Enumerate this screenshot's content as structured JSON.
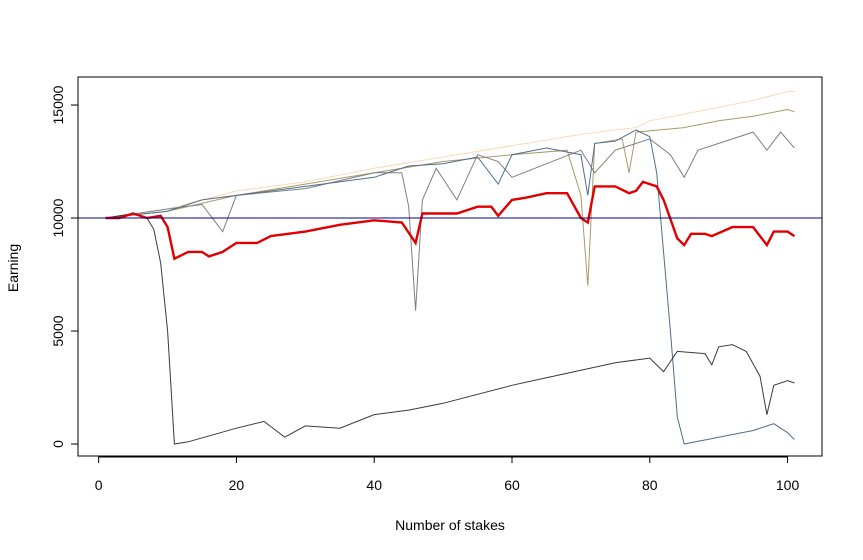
{
  "chart_data": {
    "type": "line",
    "xlabel": "Number of stakes",
    "ylabel": "Earning",
    "xlim": [
      -3,
      105
    ],
    "ylim": [
      -530,
      16240
    ],
    "xticks": [
      0,
      20,
      40,
      60,
      80,
      100
    ],
    "yticks": [
      0,
      5000,
      10000,
      15000
    ],
    "hline": 10000,
    "hline_color": "#00008b",
    "series": [
      {
        "color": "#fcd9b8",
        "width": 1,
        "x": [
          1,
          10,
          20,
          30,
          40,
          50,
          60,
          70,
          75,
          78,
          80,
          85,
          90,
          95,
          100,
          101
        ],
        "values": [
          10000,
          10400,
          11200,
          11600,
          12200,
          12700,
          13200,
          13700,
          13900,
          14000,
          14300,
          14600,
          14900,
          15200,
          15600,
          15600
        ]
      },
      {
        "color": "#a89a6a",
        "width": 1,
        "x": [
          1,
          10,
          20,
          30,
          40,
          50,
          60,
          68,
          70,
          71,
          72,
          76,
          77,
          78,
          85,
          90,
          95,
          100,
          101
        ],
        "values": [
          10000,
          10300,
          11000,
          11500,
          12000,
          12500,
          12800,
          13000,
          11000,
          7000,
          13300,
          13500,
          12000,
          13800,
          14000,
          14300,
          14500,
          14800,
          14700
        ]
      },
      {
        "color": "#7f7f7f",
        "width": 1,
        "x": [
          1,
          10,
          15,
          18,
          20,
          30,
          40,
          44,
          45,
          46,
          47,
          49,
          52,
          55,
          58,
          60,
          70,
          72,
          75,
          80,
          83,
          85,
          87,
          95,
          97,
          99,
          101
        ],
        "values": [
          10000,
          10400,
          10600,
          9400,
          11000,
          11300,
          12000,
          12000,
          10500,
          5900,
          10800,
          12200,
          10800,
          12800,
          12500,
          11800,
          13000,
          12000,
          13000,
          13500,
          12800,
          11800,
          13000,
          13800,
          13000,
          13800,
          13100
        ]
      },
      {
        "color": "#4f6d8f",
        "width": 1,
        "x": [
          1,
          10,
          15,
          20,
          30,
          40,
          45,
          50,
          55,
          58,
          60,
          65,
          70,
          71,
          72,
          75,
          78,
          80,
          81,
          83,
          84,
          85,
          90,
          95,
          98,
          100,
          101
        ],
        "values": [
          10000,
          10300,
          10800,
          11000,
          11400,
          11800,
          12300,
          12400,
          12700,
          11500,
          12800,
          13100,
          12800,
          11000,
          13300,
          13400,
          13900,
          13600,
          12000,
          5000,
          1200,
          0,
          300,
          600,
          900,
          500,
          200
        ]
      },
      {
        "color": "#3a3a3a",
        "width": 1,
        "x": [
          1,
          5,
          7,
          8,
          9,
          10,
          11,
          13,
          20,
          24,
          27,
          30,
          35,
          40,
          45,
          50,
          60,
          66,
          75,
          80,
          82,
          84,
          88,
          89,
          90,
          92,
          94,
          96,
          97,
          98,
          100,
          101
        ],
        "values": [
          10000,
          10200,
          10000,
          9500,
          8000,
          5000,
          0,
          100,
          700,
          1000,
          300,
          800,
          700,
          1300,
          1500,
          1800,
          2600,
          3000,
          3600,
          3800,
          3200,
          4100,
          4000,
          3500,
          4300,
          4400,
          4100,
          3000,
          1300,
          2600,
          2800,
          2700
        ]
      },
      {
        "color": "#e00000",
        "width": 2.4,
        "x": [
          1,
          3,
          5,
          7,
          9,
          10,
          11,
          13,
          15,
          16,
          18,
          20,
          23,
          25,
          30,
          35,
          40,
          44,
          46,
          47,
          50,
          52,
          55,
          57,
          58,
          60,
          62,
          65,
          68,
          70,
          71,
          72,
          75,
          77,
          78,
          79,
          81,
          82,
          84,
          85,
          86,
          88,
          89,
          92,
          95,
          97,
          98,
          100,
          101
        ],
        "values": [
          10000,
          10000,
          10200,
          10000,
          10100,
          9600,
          8200,
          8500,
          8500,
          8300,
          8500,
          8900,
          8900,
          9200,
          9400,
          9700,
          9900,
          9800,
          8900,
          10200,
          10200,
          10200,
          10500,
          10500,
          10100,
          10800,
          10900,
          11100,
          11100,
          10000,
          9800,
          11400,
          11400,
          11100,
          11200,
          11600,
          11400,
          10800,
          9100,
          8800,
          9300,
          9300,
          9200,
          9600,
          9600,
          8800,
          9400,
          9400,
          9200
        ]
      }
    ]
  }
}
